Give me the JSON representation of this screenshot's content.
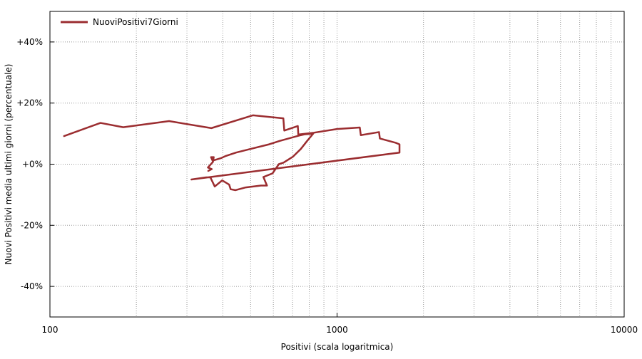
{
  "chart_data": {
    "type": "line",
    "title": "",
    "xlabel": "Positivi (scala logaritmica)",
    "ylabel": "Nuovi Positivi media ultimi giorni (percentuale)",
    "x_scale": "log",
    "xlim": [
      100,
      10000
    ],
    "ylim": [
      -50,
      50
    ],
    "x_ticks": [
      {
        "value": 100,
        "label": "100"
      },
      {
        "value": 1000,
        "label": "1000"
      },
      {
        "value": 10000,
        "label": "10000"
      }
    ],
    "y_ticks": [
      {
        "value": 40,
        "label": "+40%"
      },
      {
        "value": 20,
        "label": "+20%"
      },
      {
        "value": 0,
        "label": "+0%"
      },
      {
        "value": -20,
        "label": "-20%"
      },
      {
        "value": -40,
        "label": "-40%"
      }
    ],
    "grid": true,
    "legend_position": "top-left",
    "series": [
      {
        "name": "NuoviPositivi7Giorni",
        "color": "#9b2d30",
        "points": [
          [
            311,
            -5
          ],
          [
            350,
            -4.3
          ],
          [
            362,
            -4.3
          ],
          [
            375,
            -7.3
          ],
          [
            398,
            -5.3
          ],
          [
            421,
            -6.7
          ],
          [
            426,
            -8.2
          ],
          [
            443,
            -8.5
          ],
          [
            481,
            -7.6
          ],
          [
            543,
            -7
          ],
          [
            570,
            -7
          ],
          [
            554,
            -4.2
          ],
          [
            596,
            -3
          ],
          [
            627,
            0
          ],
          [
            651,
            0.5
          ],
          [
            703,
            2.5
          ],
          [
            748,
            5
          ],
          [
            785,
            7.5
          ],
          [
            826,
            10
          ],
          [
            775,
            9.8
          ],
          [
            740,
            9.4
          ],
          [
            630,
            7.6
          ],
          [
            580,
            6.5
          ],
          [
            500,
            5
          ],
          [
            445,
            3.8
          ],
          [
            410,
            2.7
          ],
          [
            395,
            2
          ],
          [
            370,
            1.2
          ],
          [
            372,
            2.3
          ],
          [
            364,
            2.3
          ],
          [
            370,
            0.8
          ],
          [
            355,
            -1.1
          ],
          [
            366,
            -1.6
          ],
          [
            356,
            -2.2
          ]
        ],
        "path": [
          [
            112,
            9.2
          ],
          [
            150,
            13.5
          ],
          [
            180,
            12.1
          ],
          [
            260,
            14.1
          ],
          [
            365,
            11.8
          ],
          [
            510,
            16
          ],
          [
            650,
            15
          ],
          [
            655,
            11
          ],
          [
            730,
            12.5
          ],
          [
            733,
            9.7
          ],
          [
            830,
            10.3
          ],
          [
            1000,
            11.5
          ],
          [
            1200,
            12
          ],
          [
            1210,
            9.5
          ],
          [
            1400,
            10.5
          ],
          [
            1410,
            8.4
          ],
          [
            1600,
            7
          ],
          [
            1650,
            6.5
          ],
          [
            1650,
            3.8
          ]
        ]
      }
    ]
  }
}
